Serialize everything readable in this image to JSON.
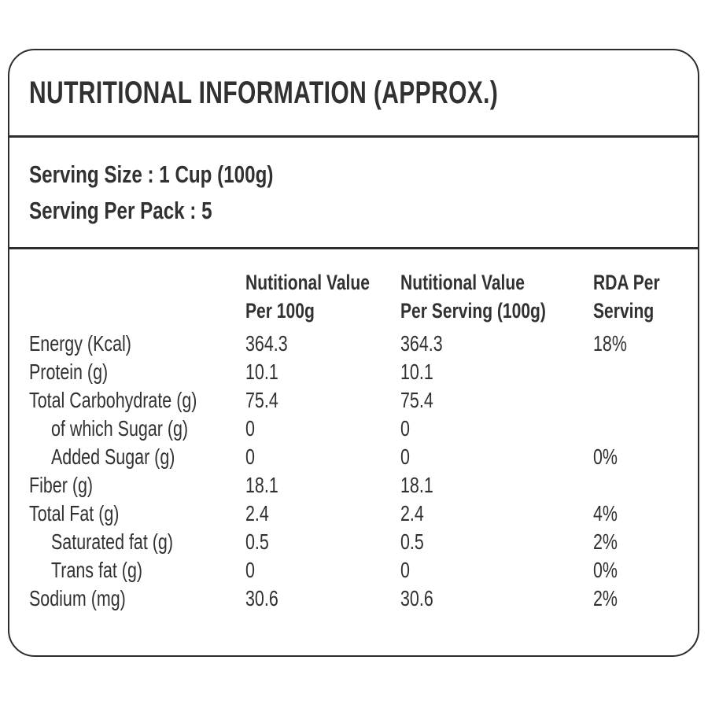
{
  "header": {
    "title": "NUTRITIONAL INFORMATION (APPROX.)"
  },
  "serving": {
    "size": "Serving Size : 1 Cup (100g)",
    "per_pack": "Serving Per Pack : 5"
  },
  "table": {
    "columns": [
      {
        "line1": "Nutitional Value",
        "line2": "Per 100g"
      },
      {
        "line1": "Nutitional Value",
        "line2": "Per Serving (100g)"
      },
      {
        "line1": "RDA Per",
        "line2": "Serving"
      }
    ],
    "rows": [
      {
        "label": "Energy (Kcal)",
        "indent": false,
        "per_100g": "364.3",
        "per_serving": "364.3",
        "rda": "18%"
      },
      {
        "label": "Protein (g)",
        "indent": false,
        "per_100g": "10.1",
        "per_serving": "10.1",
        "rda": ""
      },
      {
        "label": "Total Carbohydrate (g)",
        "indent": false,
        "per_100g": "75.4",
        "per_serving": "75.4",
        "rda": ""
      },
      {
        "label": "of which Sugar (g)",
        "indent": true,
        "per_100g": "0",
        "per_serving": "0",
        "rda": ""
      },
      {
        "label": "Added Sugar (g)",
        "indent": true,
        "per_100g": "0",
        "per_serving": "0",
        "rda": "0%"
      },
      {
        "label": "Fiber (g)",
        "indent": false,
        "per_100g": "18.1",
        "per_serving": "18.1",
        "rda": ""
      },
      {
        "label": "Total Fat (g)",
        "indent": false,
        "per_100g": "2.4",
        "per_serving": "2.4",
        "rda": "4%"
      },
      {
        "label": "Saturated fat (g)",
        "indent": true,
        "per_100g": "0.5",
        "per_serving": "0.5",
        "rda": "2%"
      },
      {
        "label": "Trans fat (g)",
        "indent": true,
        "per_100g": "0",
        "per_serving": "0",
        "rda": "0%"
      },
      {
        "label": "Sodium (mg)",
        "indent": false,
        "per_100g": "30.6",
        "per_serving": "30.6",
        "rda": "2%"
      }
    ]
  },
  "colors": {
    "text": "#313131",
    "border": "#2d2d2d",
    "background": "#ffffff"
  }
}
